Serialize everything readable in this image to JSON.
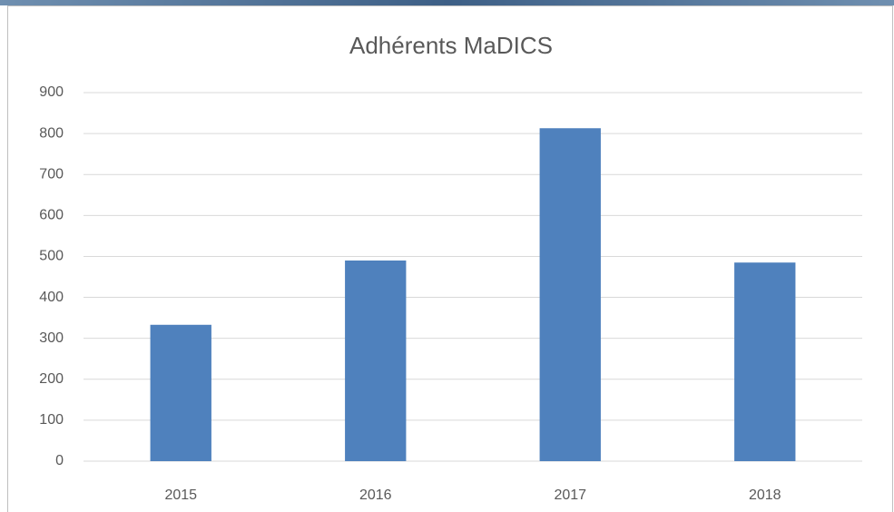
{
  "chart_data": {
    "type": "bar",
    "title": "Adhérents MaDICS",
    "categories": [
      "2015",
      "2016",
      "2017",
      "2018"
    ],
    "values": [
      333,
      490,
      813,
      485
    ],
    "color": "#4f81bd",
    "ylim": [
      0,
      900
    ],
    "yticks": [
      0,
      100,
      200,
      300,
      400,
      500,
      600,
      700,
      800,
      900
    ],
    "grid": true
  }
}
